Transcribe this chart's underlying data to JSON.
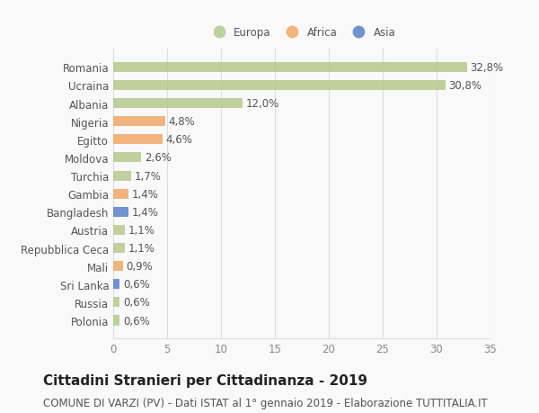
{
  "countries": [
    "Romania",
    "Ucraina",
    "Albania",
    "Nigeria",
    "Egitto",
    "Moldova",
    "Turchia",
    "Gambia",
    "Bangladesh",
    "Austria",
    "Repubblica Ceca",
    "Mali",
    "Sri Lanka",
    "Russia",
    "Polonia"
  ],
  "values": [
    32.8,
    30.8,
    12.0,
    4.8,
    4.6,
    2.6,
    1.7,
    1.4,
    1.4,
    1.1,
    1.1,
    0.9,
    0.6,
    0.6,
    0.6
  ],
  "labels": [
    "32,8%",
    "30,8%",
    "12,0%",
    "4,8%",
    "4,6%",
    "2,6%",
    "1,7%",
    "1,4%",
    "1,4%",
    "1,1%",
    "1,1%",
    "0,9%",
    "0,6%",
    "0,6%",
    "0,6%"
  ],
  "continent": [
    "Europa",
    "Europa",
    "Europa",
    "Africa",
    "Africa",
    "Europa",
    "Europa",
    "Africa",
    "Asia",
    "Europa",
    "Europa",
    "Africa",
    "Asia",
    "Europa",
    "Europa"
  ],
  "colors": {
    "Europa": "#b5c98e",
    "Africa": "#f0a868",
    "Asia": "#5b80c8"
  },
  "legend_order": [
    "Europa",
    "Africa",
    "Asia"
  ],
  "xlim": [
    0,
    35
  ],
  "xticks": [
    0,
    5,
    10,
    15,
    20,
    25,
    30,
    35
  ],
  "title": "Cittadini Stranieri per Cittadinanza - 2019",
  "subtitle": "COMUNE DI VARZI (PV) - Dati ISTAT al 1° gennaio 2019 - Elaborazione TUTTITALIA.IT",
  "background_color": "#f9f9f9",
  "grid_color": "#dddddd",
  "bar_height": 0.55,
  "label_fontsize": 8.5,
  "ytick_fontsize": 8.5,
  "xtick_fontsize": 8.5,
  "title_fontsize": 11,
  "subtitle_fontsize": 8.5
}
